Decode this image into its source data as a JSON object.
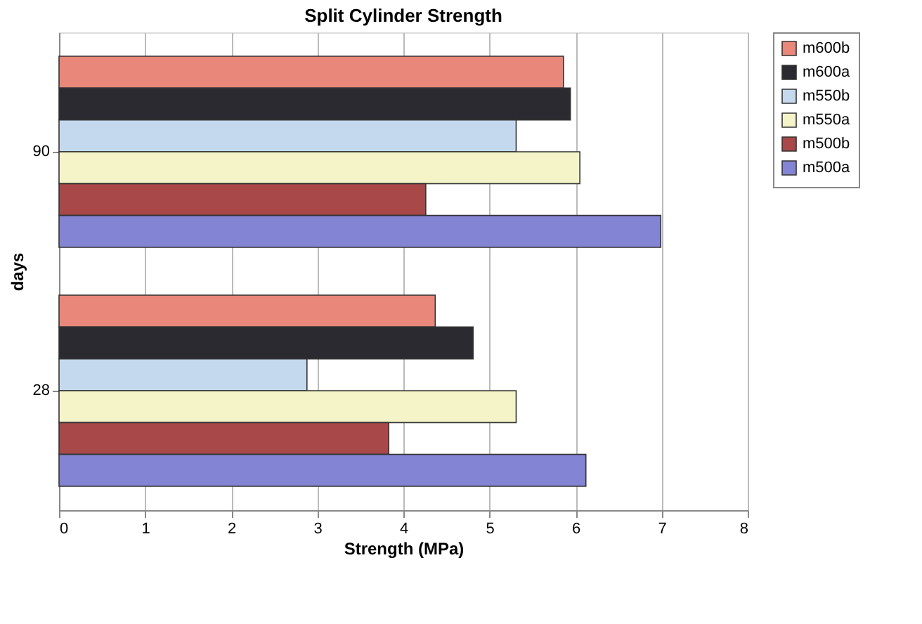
{
  "chart_data": {
    "type": "bar",
    "orientation": "horizontal",
    "title": "Split Cylinder Strength",
    "xlabel": "Strength (MPa)",
    "ylabel": "days",
    "categories": [
      "90",
      "28"
    ],
    "series": [
      {
        "name": "m600b",
        "color": "#e8877a",
        "values": [
          5.86,
          4.37
        ]
      },
      {
        "name": "m600a",
        "color": "#2b2a30",
        "values": [
          5.94,
          4.81
        ]
      },
      {
        "name": "m550b",
        "color": "#c5d9ee",
        "values": [
          5.31,
          2.88
        ]
      },
      {
        "name": "m550a",
        "color": "#f4f4c8",
        "values": [
          6.05,
          5.31
        ]
      },
      {
        "name": "m500b",
        "color": "#a84848",
        "values": [
          4.26,
          3.83
        ]
      },
      {
        "name": "m500a",
        "color": "#8484d4",
        "values": [
          6.99,
          6.12
        ]
      }
    ],
    "xlim": [
      0,
      8
    ],
    "xticks": [
      0,
      1,
      2,
      3,
      4,
      5,
      6,
      7,
      8
    ],
    "grid": "x",
    "legend": "right"
  }
}
